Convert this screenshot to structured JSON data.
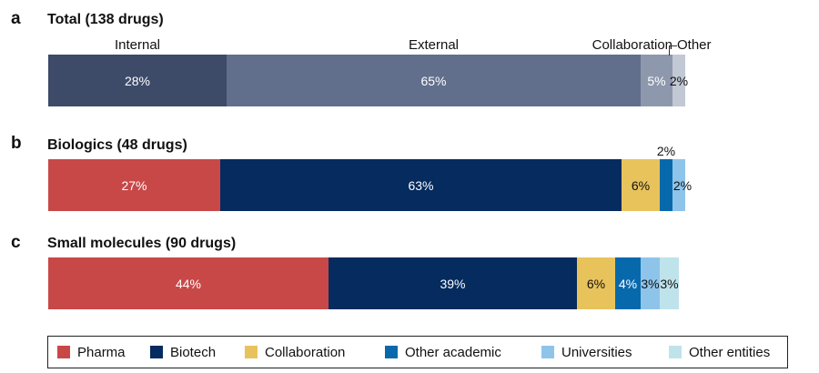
{
  "colors": {
    "internal": "#3d4a68",
    "external": "#616f8d",
    "collaboration_total": "#8e98ad",
    "other_total": "#c2c8d4",
    "pharma": "#c84848",
    "biotech": "#052b5f",
    "collaboration": "#e8c35c",
    "other_academic": "#0769ac",
    "universities": "#8ec4ea",
    "other_entities": "#bfe3ea"
  },
  "chart_data": [
    {
      "type": "bar",
      "orientation": "horizontal-stacked-100",
      "panel": "a",
      "title": "Total (138 drugs)",
      "series": [
        {
          "name": "Internal",
          "value": 28,
          "label": "28%",
          "color_key": "internal"
        },
        {
          "name": "External",
          "value": 65,
          "label": "65%",
          "color_key": "external"
        },
        {
          "name": "Collaboration",
          "value": 5,
          "label": "5%",
          "color_key": "collaboration_total"
        },
        {
          "name": "Other",
          "value": 2,
          "label": "2%",
          "color_key": "other_total"
        }
      ]
    },
    {
      "type": "bar",
      "orientation": "horizontal-stacked-100",
      "panel": "b",
      "title": "Biologics (48 drugs)",
      "series": [
        {
          "name": "Pharma",
          "value": 27,
          "label": "27%",
          "color_key": "pharma"
        },
        {
          "name": "Biotech",
          "value": 63,
          "label": "63%",
          "color_key": "biotech"
        },
        {
          "name": "Collaboration",
          "value": 6,
          "label": "6%",
          "color_key": "collaboration"
        },
        {
          "name": "Other academic",
          "value": 2,
          "label": "2%",
          "color_key": "other_academic"
        },
        {
          "name": "Universities",
          "value": 2,
          "label": "2%",
          "color_key": "universities"
        }
      ]
    },
    {
      "type": "bar",
      "orientation": "horizontal-stacked-100",
      "panel": "c",
      "title": "Small molecules (90 drugs)",
      "series": [
        {
          "name": "Pharma",
          "value": 44,
          "label": "44%",
          "color_key": "pharma"
        },
        {
          "name": "Biotech",
          "value": 39,
          "label": "39%",
          "color_key": "biotech"
        },
        {
          "name": "Collaboration",
          "value": 6,
          "label": "6%",
          "color_key": "collaboration"
        },
        {
          "name": "Other academic",
          "value": 4,
          "label": "4%",
          "color_key": "other_academic"
        },
        {
          "name": "Universities",
          "value": 3,
          "label": "3%",
          "color_key": "universities"
        },
        {
          "name": "Other entities",
          "value": 3,
          "label": "3%",
          "color_key": "other_entities"
        }
      ]
    }
  ],
  "legend": [
    {
      "label": "Pharma",
      "color_key": "pharma"
    },
    {
      "label": "Biotech",
      "color_key": "biotech"
    },
    {
      "label": "Collaboration",
      "color_key": "collaboration"
    },
    {
      "label": "Other academic",
      "color_key": "other_academic"
    },
    {
      "label": "Universities",
      "color_key": "universities"
    },
    {
      "label": "Other entities",
      "color_key": "other_entities"
    }
  ]
}
